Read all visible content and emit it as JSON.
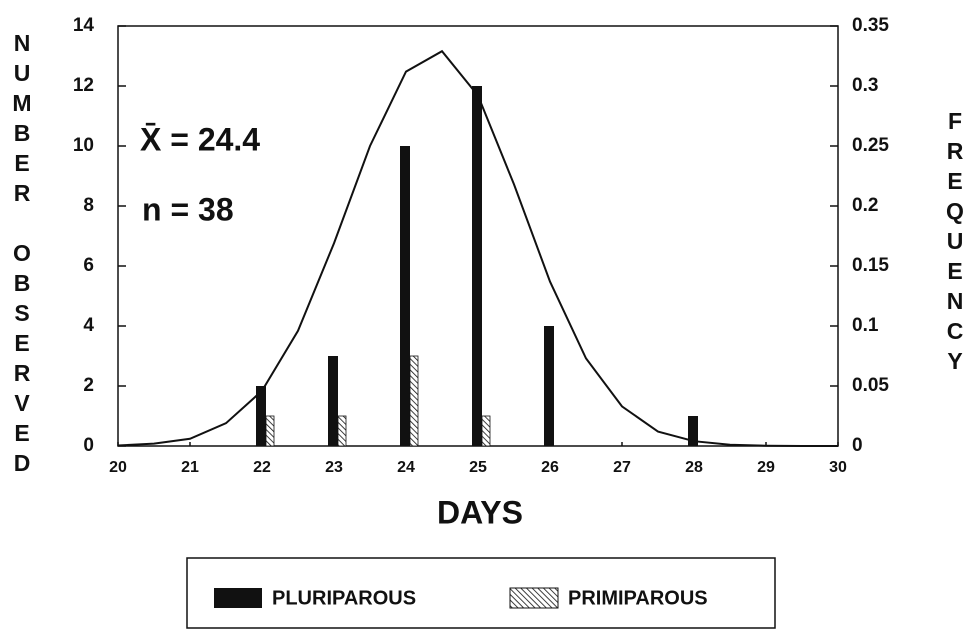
{
  "chart_data": {
    "type": "bar",
    "x_label": "DAYS",
    "y_label": "NUMBER OBSERVED",
    "y2_label": "FREQUENCY",
    "annotations": [
      "X̄ = 24.4",
      "n = 38"
    ],
    "xlim": [
      20,
      30
    ],
    "xticks": [
      20,
      21,
      22,
      23,
      24,
      25,
      26,
      27,
      28,
      29,
      30
    ],
    "ylim": [
      0,
      14
    ],
    "yticks": [
      0,
      2,
      4,
      6,
      8,
      10,
      12,
      14
    ],
    "y2lim": [
      0,
      0.35
    ],
    "y2ticks": [
      0,
      0.05,
      0.1,
      0.15,
      0.2,
      0.25,
      0.3,
      0.35
    ],
    "series": [
      {
        "name": "PLURIPAROUS",
        "color": "#111111",
        "x": [
          22,
          23,
          24,
          25,
          26,
          28
        ],
        "values": [
          2,
          3,
          10,
          12,
          4,
          1
        ]
      },
      {
        "name": "PRIMIPAROUS",
        "color": "#111111",
        "pattern": "hatch",
        "x": [
          22,
          23,
          24,
          25
        ],
        "values": [
          1,
          1,
          3,
          1
        ]
      },
      {
        "type": "line",
        "axis": "y2",
        "color": "#111111",
        "x": [
          20,
          20.5,
          21,
          21.5,
          22,
          22.5,
          23,
          23.5,
          24,
          24.5,
          25,
          25.5,
          26,
          26.5,
          27,
          27.5,
          28,
          28.5,
          29,
          29.5,
          30
        ],
        "values": [
          0.0004,
          0.002,
          0.006,
          0.019,
          0.046,
          0.096,
          0.169,
          0.25,
          0.312,
          0.329,
          0.292,
          0.218,
          0.137,
          0.073,
          0.033,
          0.012,
          0.004,
          0.001,
          0.0002,
          0,
          0
        ]
      }
    ],
    "legend": "bottom"
  }
}
